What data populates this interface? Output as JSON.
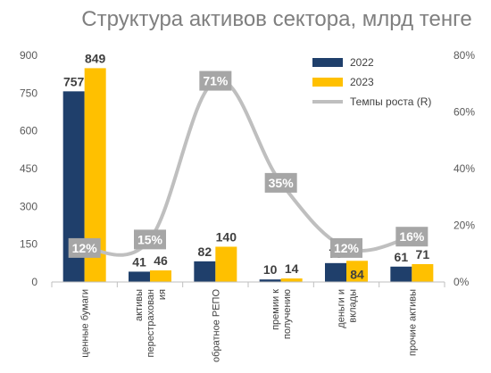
{
  "chart_data": {
    "type": "bar",
    "title": "Структура активов сектора, млрд тенге",
    "categories": [
      [
        "ценные бумаги"
      ],
      [
        "активы",
        "перестрахован",
        "ия"
      ],
      [
        "обратное РЕПО"
      ],
      [
        "премии к",
        "получению"
      ],
      [
        "деньги и",
        "вклады"
      ],
      [
        "прочие активы"
      ]
    ],
    "series": [
      {
        "name": "2022",
        "color": "#1f3f6b",
        "values": [
          757,
          41,
          82,
          10,
          75,
          61
        ]
      },
      {
        "name": "2023",
        "color": "#ffc000",
        "values": [
          849,
          46,
          140,
          14,
          84,
          71
        ]
      }
    ],
    "line_series": {
      "name": "Темпы роста (R)",
      "color": "#bfbfbf",
      "axis": "right",
      "values": [
        12,
        15,
        71,
        35,
        12,
        16
      ],
      "labels": [
        "12%",
        "15%",
        "71%",
        "35%",
        "12%",
        "16%"
      ]
    },
    "ylim": [
      0,
      900
    ],
    "yticks": [
      "0",
      "150",
      "300",
      "450",
      "600",
      "750",
      "900"
    ],
    "y2lim": [
      0,
      80
    ],
    "y2ticks": [
      "0%",
      "20%",
      "40%",
      "60%",
      "80%"
    ],
    "legend_position": "top-right",
    "grid": false
  }
}
